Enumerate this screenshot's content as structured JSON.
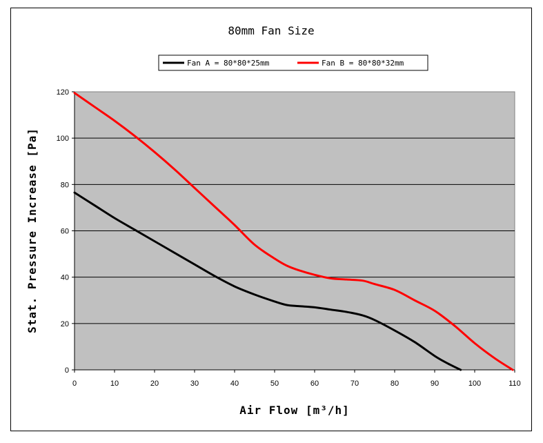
{
  "chart_data": {
    "type": "line",
    "title": "80mm Fan Size",
    "xlabel": "Air Flow [m³/h]",
    "ylabel": "Stat. Pressure Increase [Pa]",
    "xlim": [
      0,
      110
    ],
    "ylim": [
      0,
      120
    ],
    "xticks": [
      "0",
      "10",
      "20",
      "30",
      "40",
      "50",
      "60",
      "70",
      "80",
      "90",
      "100",
      "110"
    ],
    "yticks": [
      "0",
      "20",
      "40",
      "60",
      "80",
      "100",
      "120"
    ],
    "grid": "horizontal",
    "legend_position": "top",
    "plot_background": "#c0c0c0",
    "series": [
      {
        "name": "Fan A = 80*80*25mm",
        "color": "#000000",
        "x": [
          0,
          5,
          10,
          15,
          20,
          25,
          30,
          35,
          40,
          45,
          50,
          53,
          56,
          60,
          64,
          68,
          72,
          75,
          80,
          85,
          90,
          93,
          96.5
        ],
        "y": [
          76.5,
          71,
          65.5,
          60.5,
          55.5,
          50.5,
          45.5,
          40.5,
          36,
          32.5,
          29.5,
          28,
          27.5,
          27,
          26,
          25,
          23.5,
          21.5,
          17,
          12,
          6,
          3,
          0
        ]
      },
      {
        "name": "Fan B = 80*80*32mm",
        "color": "#ff0000",
        "x": [
          0,
          5,
          10,
          15,
          20,
          25,
          30,
          35,
          40,
          45,
          50,
          53,
          56,
          60,
          64,
          68,
          72,
          75,
          80,
          85,
          90,
          95,
          100,
          105,
          109.5
        ],
        "y": [
          119.5,
          113.5,
          107.5,
          101,
          94,
          86.5,
          78.5,
          70.5,
          62.5,
          54,
          48,
          45,
          43,
          41,
          39.5,
          39,
          38.5,
          37,
          34.5,
          30,
          25.5,
          19,
          11.5,
          5,
          0
        ]
      }
    ]
  }
}
